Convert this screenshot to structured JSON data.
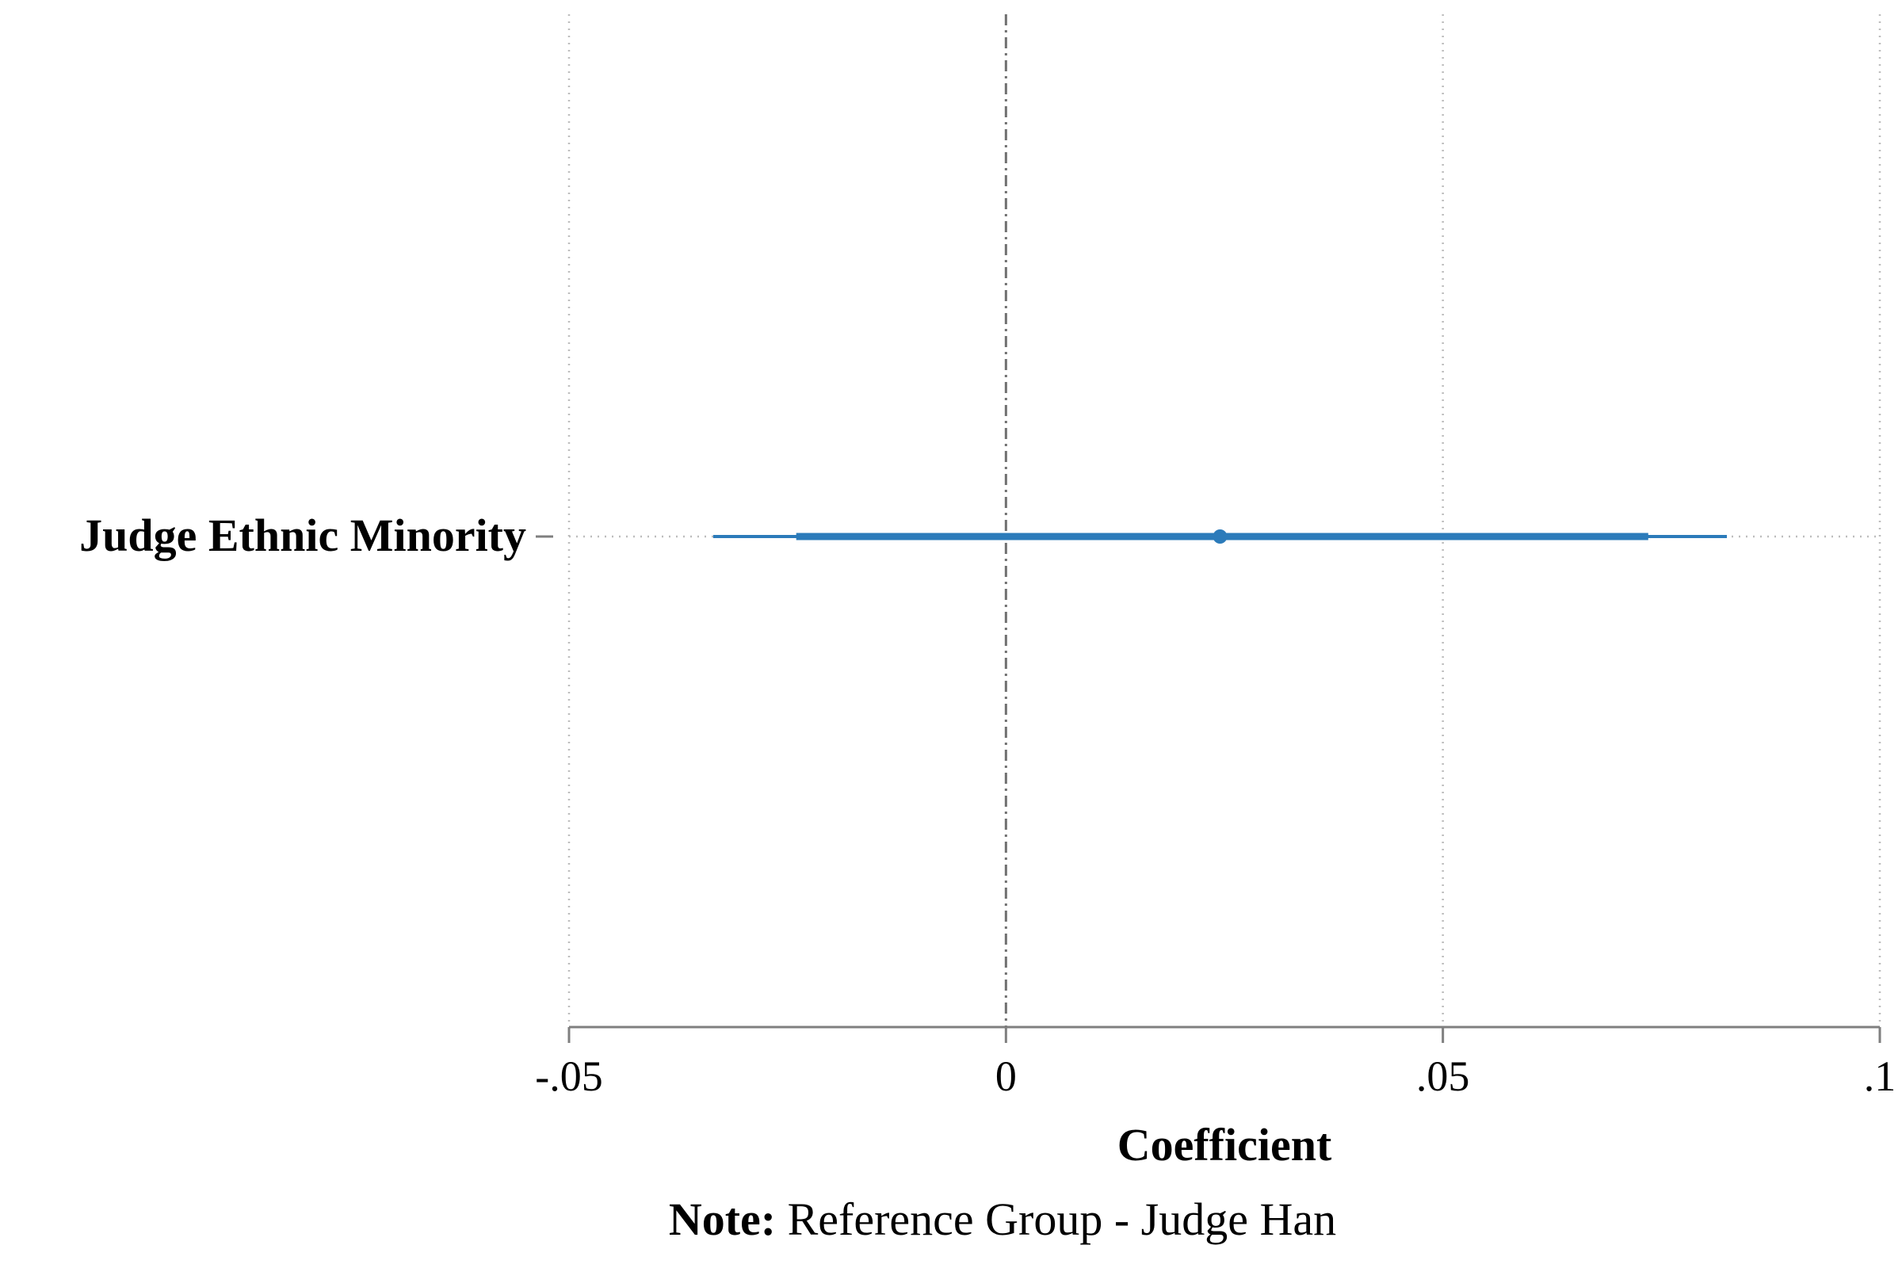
{
  "chart_data": {
    "type": "coefficient-plot",
    "xlabel": "Coefficient",
    "xlim": [
      -0.05,
      0.1
    ],
    "xticks": [
      {
        "value": -0.05,
        "label": "-.05"
      },
      {
        "value": 0,
        "label": "0"
      },
      {
        "value": 0.05,
        "label": ".05"
      },
      {
        "value": 0.1,
        "label": ".1"
      }
    ],
    "reference_line": 0,
    "grid": true,
    "colors": {
      "series": "#2b7bba",
      "axis": "#7f7f7f",
      "grid": "#bdbdbd"
    },
    "coefficients": [
      {
        "label": "Judge Ethnic Minority",
        "estimate": 0.0245,
        "ci_inner": [
          -0.024,
          0.0735
        ],
        "ci_outer": [
          -0.0335,
          0.0825
        ]
      }
    ]
  },
  "note": {
    "prefix": "Note:",
    "text": " Reference Group - Judge Han"
  }
}
